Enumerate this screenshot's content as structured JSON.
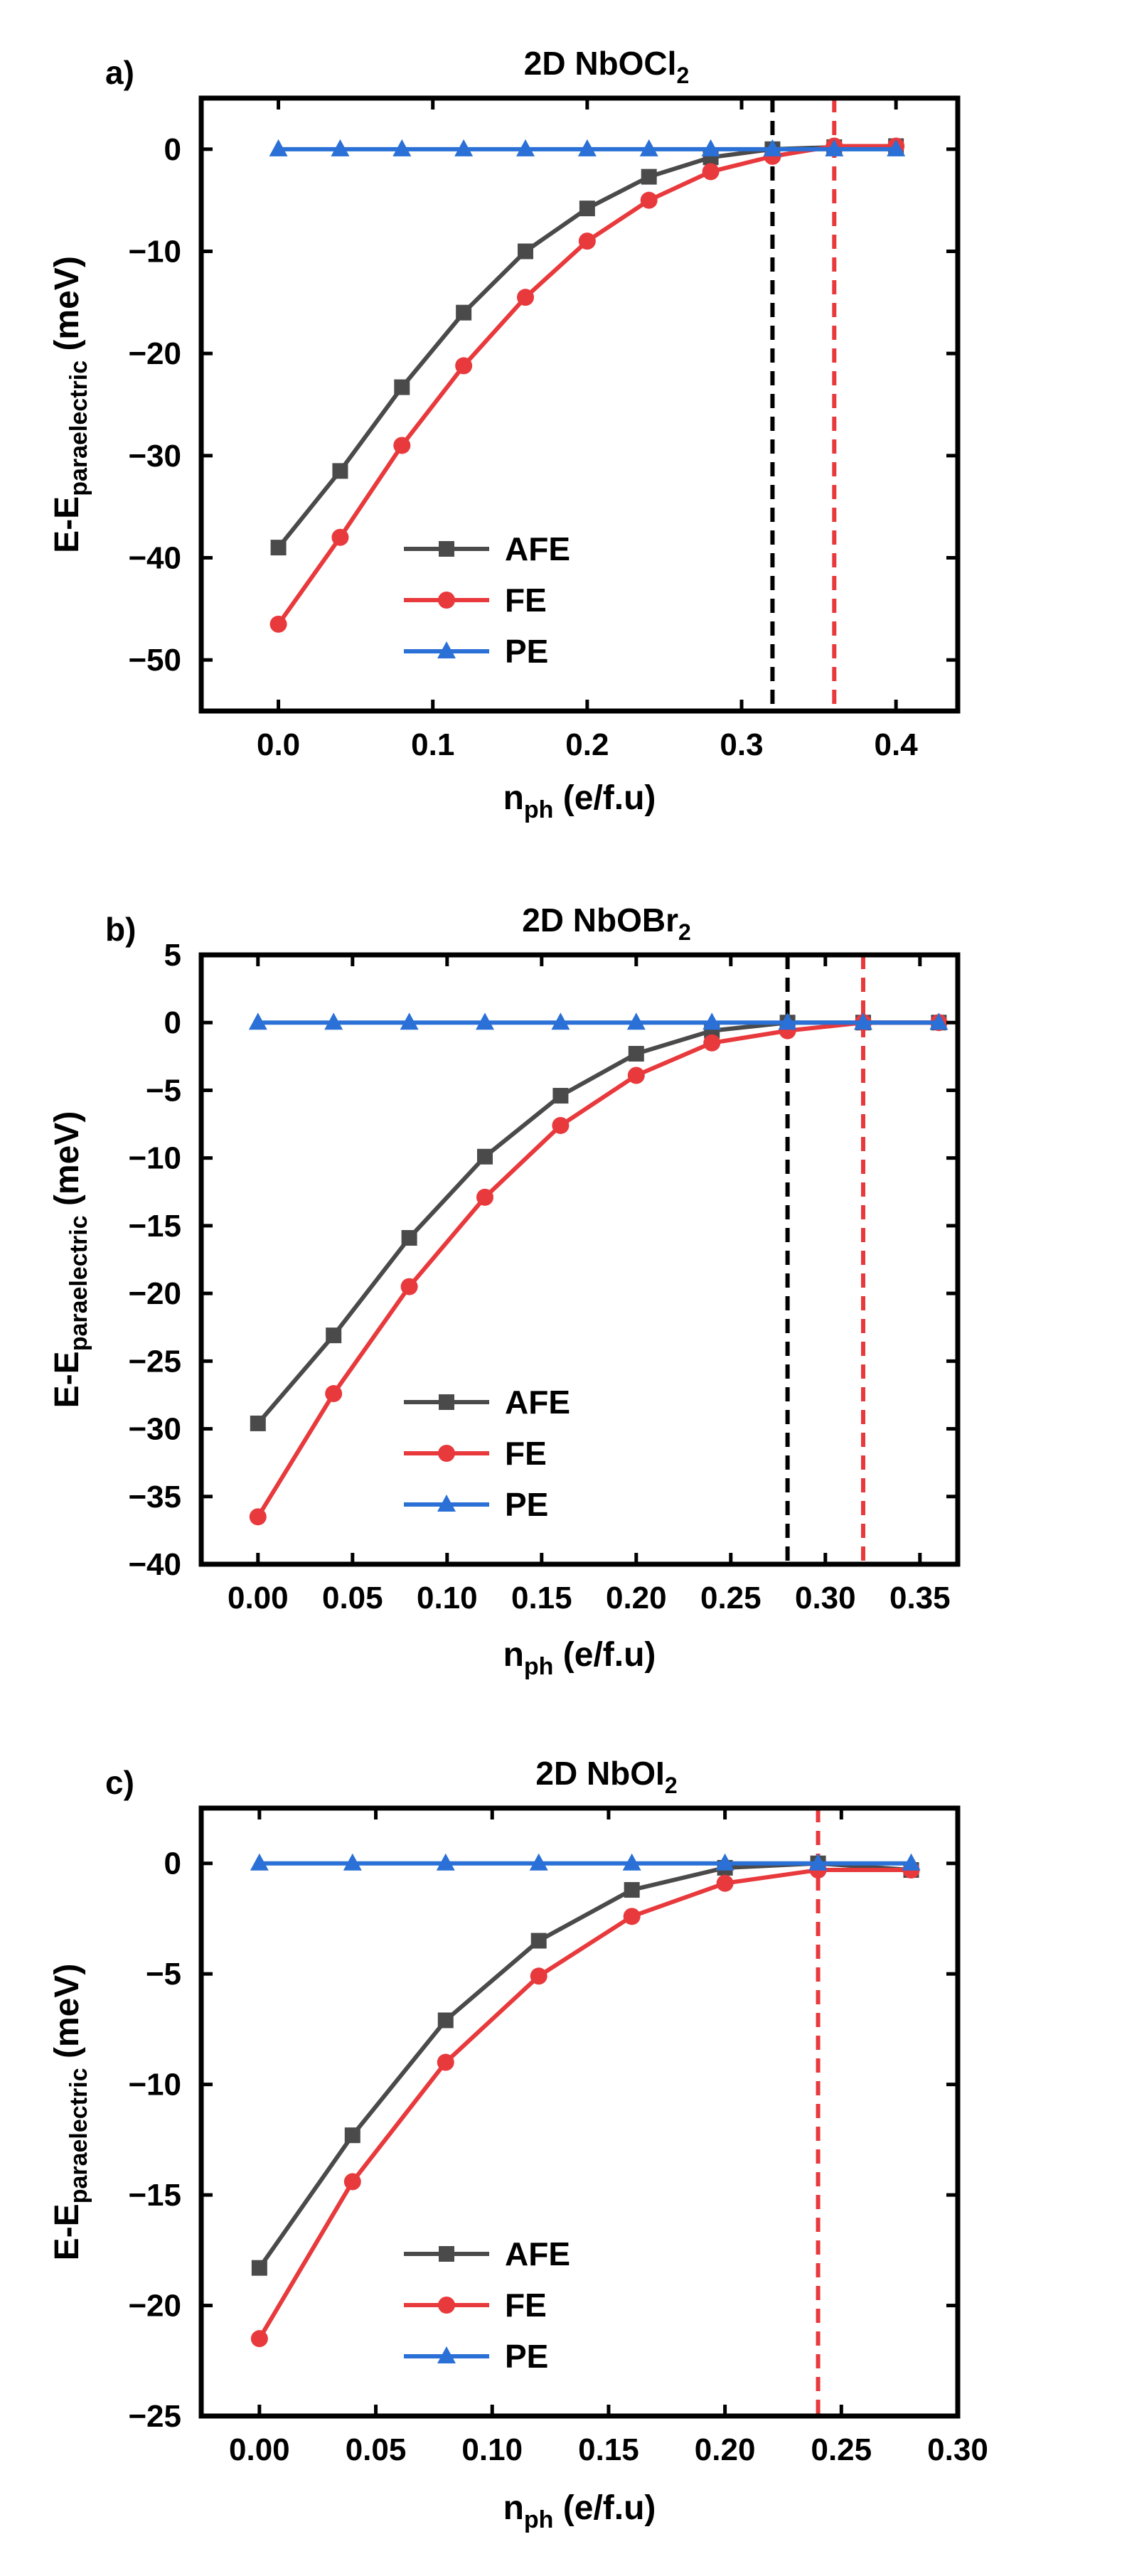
{
  "colors": {
    "AFE": "#4a4a4a",
    "FE": "#e8393c",
    "PE": "#2a70d6",
    "axis": "#000000"
  },
  "panels": [
    {
      "letter": "a)",
      "title_main": "2D NbOCl",
      "title_sub": "2"
    },
    {
      "letter": "b)",
      "title_main": "2D NbOBr",
      "title_sub": "2"
    },
    {
      "letter": "c)",
      "title_main": "2D NbOI",
      "title_sub": "2"
    }
  ],
  "chart_data": [
    {
      "type": "line",
      "title": "2D NbOCl2",
      "xlabel": "n_ph (e/f.u)",
      "ylabel": "E-E_paraelectric (meV)",
      "xlim": [
        -0.05,
        0.44
      ],
      "ylim": [
        -55,
        5
      ],
      "xticks": [
        0.0,
        0.1,
        0.2,
        0.3,
        0.4
      ],
      "xtick_labels": [
        "0.0",
        "0.1",
        "0.2",
        "0.3",
        "0.4"
      ],
      "yticks": [
        -50,
        -40,
        -30,
        -20,
        -10,
        0
      ],
      "ytick_labels": [
        "−50",
        "−40",
        "−30",
        "−20",
        "−10",
        "0"
      ],
      "x": [
        0.0,
        0.04,
        0.08,
        0.12,
        0.16,
        0.2,
        0.24,
        0.28,
        0.32,
        0.36,
        0.4
      ],
      "series": [
        {
          "name": "AFE",
          "marker": "square",
          "values": [
            -39.0,
            -31.5,
            -23.3,
            -16.0,
            -10.0,
            -5.8,
            -2.7,
            -0.8,
            0.0,
            0.2,
            0.3
          ]
        },
        {
          "name": "FE",
          "marker": "circle",
          "values": [
            -46.5,
            -38.0,
            -29.0,
            -21.2,
            -14.5,
            -9.0,
            -5.0,
            -2.2,
            -0.7,
            0.3,
            0.3
          ]
        },
        {
          "name": "PE",
          "marker": "triangle",
          "values": [
            0,
            0,
            0,
            0,
            0,
            0,
            0,
            0,
            0,
            0,
            0
          ]
        }
      ],
      "vlines": [
        {
          "x": 0.32,
          "color": "#000000"
        },
        {
          "x": 0.36,
          "color": "#e8393c"
        }
      ],
      "legend_position": "bottom-left"
    },
    {
      "type": "line",
      "title": "2D NbOBr2",
      "xlabel": "n_ph (e/f.u)",
      "ylabel": "E-E_paraelectric (meV)",
      "xlim": [
        -0.03,
        0.37
      ],
      "ylim": [
        -40,
        5
      ],
      "xticks": [
        0.0,
        0.05,
        0.1,
        0.15,
        0.2,
        0.25,
        0.3,
        0.35
      ],
      "xtick_labels": [
        "0.00",
        "0.05",
        "0.10",
        "0.15",
        "0.20",
        "0.25",
        "0.30",
        "0.35"
      ],
      "yticks": [
        -40,
        -35,
        -30,
        -25,
        -20,
        -15,
        -10,
        -5,
        0,
        5
      ],
      "ytick_labels": [
        "−40",
        "−35",
        "−30",
        "−25",
        "−20",
        "−15",
        "−10",
        "−5",
        "0",
        "5"
      ],
      "x": [
        0.0,
        0.04,
        0.08,
        0.12,
        0.16,
        0.2,
        0.24,
        0.28,
        0.32,
        0.36
      ],
      "series": [
        {
          "name": "AFE",
          "marker": "square",
          "values": [
            -29.6,
            -23.1,
            -15.9,
            -9.9,
            -5.4,
            -2.3,
            -0.6,
            0.0,
            0.0,
            0.0
          ]
        },
        {
          "name": "FE",
          "marker": "circle",
          "values": [
            -36.5,
            -27.4,
            -19.5,
            -12.9,
            -7.6,
            -3.9,
            -1.5,
            -0.6,
            0.0,
            0.0
          ]
        },
        {
          "name": "PE",
          "marker": "triangle",
          "values": [
            0,
            0,
            0,
            0,
            0,
            0,
            0,
            0,
            0,
            0
          ]
        }
      ],
      "vlines": [
        {
          "x": 0.28,
          "color": "#000000"
        },
        {
          "x": 0.32,
          "color": "#e8393c"
        }
      ],
      "legend_position": "bottom-left"
    },
    {
      "type": "line",
      "title": "2D NbOI2",
      "xlabel": "n_ph (e/f.u)",
      "ylabel": "E-E_paraelectric (meV)",
      "xlim": [
        -0.025,
        0.3
      ],
      "ylim": [
        -25,
        2.5
      ],
      "xticks": [
        0.0,
        0.05,
        0.1,
        0.15,
        0.2,
        0.25,
        0.3
      ],
      "xtick_labels": [
        "0.00",
        "0.05",
        "0.10",
        "0.15",
        "0.20",
        "0.25",
        "0.30"
      ],
      "yticks": [
        -25,
        -20,
        -15,
        -10,
        -5,
        0
      ],
      "ytick_labels": [
        "−25",
        "−20",
        "−15",
        "−10",
        "−5",
        "0"
      ],
      "x": [
        0.0,
        0.04,
        0.08,
        0.12,
        0.16,
        0.2,
        0.24,
        0.28
      ],
      "series": [
        {
          "name": "AFE",
          "marker": "square",
          "values": [
            -18.3,
            -12.3,
            -7.1,
            -3.5,
            -1.2,
            -0.2,
            0.0,
            -0.3
          ]
        },
        {
          "name": "FE",
          "marker": "circle",
          "values": [
            -21.5,
            -14.4,
            -9.0,
            -5.1,
            -2.4,
            -0.9,
            -0.3,
            -0.3
          ]
        },
        {
          "name": "PE",
          "marker": "triangle",
          "values": [
            0,
            0,
            0,
            0,
            0,
            0,
            0,
            0
          ]
        }
      ],
      "vlines": [
        {
          "x": 0.24,
          "color": "#e8393c"
        }
      ],
      "legend_position": "bottom-left"
    }
  ]
}
